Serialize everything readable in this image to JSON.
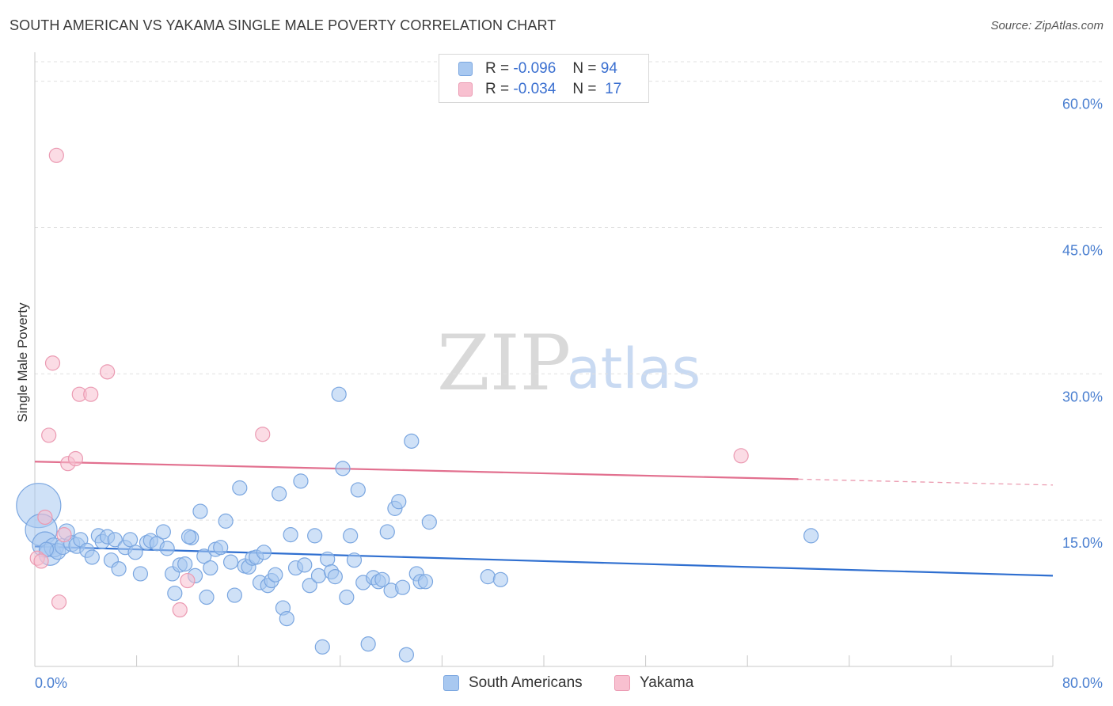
{
  "header": {
    "title": "SOUTH AMERICAN VS YAKAMA SINGLE MALE POVERTY CORRELATION CHART",
    "source": "Source: ZipAtlas.com"
  },
  "watermark": {
    "part1": "ZIP",
    "part2": "atlas"
  },
  "legend": {
    "rows": [
      {
        "r_label": "R =",
        "r_value": "-0.096",
        "n_label": "N =",
        "n_value": "94",
        "color": "#a8c8f0",
        "border": "#7aa6e0"
      },
      {
        "r_label": "R =",
        "r_value": "-0.034",
        "n_label": "N =",
        "n_value": "17",
        "color": "#f8c0d0",
        "border": "#eb9ab2"
      }
    ]
  },
  "bottom_legend": [
    {
      "label": "South Americans",
      "color": "#a8c8f0",
      "border": "#7aa6e0"
    },
    {
      "label": "Yakama",
      "color": "#f8c0d0",
      "border": "#eb9ab2"
    }
  ],
  "chart_data": {
    "type": "scatter",
    "title": "SOUTH AMERICAN VS YAKAMA SINGLE MALE POVERTY CORRELATION CHART",
    "xlabel": "",
    "ylabel": "Single Male Poverty",
    "xlim": [
      0,
      80
    ],
    "ylim": [
      0,
      62
    ],
    "x_tick_labels": [
      "0.0%",
      "80.0%"
    ],
    "y_ticks": [
      15,
      30,
      45,
      60
    ],
    "y_tick_labels": [
      "15.0%",
      "30.0%",
      "45.0%",
      "60.0%"
    ],
    "grid": "horizontal dashed",
    "legend_position": "top-center",
    "series": [
      {
        "name": "South Americans",
        "color": "#7aa6e0",
        "fill": "#a8c8f0",
        "trend": {
          "x": [
            0,
            80
          ],
          "y": [
            12.3,
            9.3
          ],
          "style": "solid",
          "color": "#2f6fd0"
        },
        "points": [
          [
            0.3,
            16.5,
            28
          ],
          [
            0.5,
            14,
            20
          ],
          [
            0.8,
            12.5,
            16
          ],
          [
            1.2,
            11.5,
            14
          ],
          [
            1.5,
            12.2,
            12
          ],
          [
            1.8,
            11.8,
            10
          ],
          [
            2.2,
            12.3,
            10
          ],
          [
            2.5,
            13.8,
            10
          ],
          [
            2.9,
            12.6,
            10
          ],
          [
            3.3,
            12.4,
            10
          ],
          [
            3.6,
            13.0,
            9
          ],
          [
            4.1,
            11.9,
            9
          ],
          [
            4.5,
            11.2,
            9
          ],
          [
            5.0,
            13.4,
            9
          ],
          [
            5.3,
            12.8,
            9
          ],
          [
            5.7,
            13.3,
            9
          ],
          [
            6.0,
            10.9,
            9
          ],
          [
            6.6,
            10.0,
            9
          ],
          [
            6.3,
            13.0,
            9
          ],
          [
            7.1,
            12.2,
            9
          ],
          [
            7.5,
            13.0,
            9
          ],
          [
            7.9,
            11.7,
            9
          ],
          [
            8.3,
            9.5,
            9
          ],
          [
            8.8,
            12.7,
            9
          ],
          [
            9.1,
            12.9,
            9
          ],
          [
            9.6,
            12.6,
            9
          ],
          [
            10.1,
            13.8,
            9
          ],
          [
            10.4,
            12.1,
            9
          ],
          [
            10.8,
            9.5,
            9
          ],
          [
            11.0,
            7.5,
            9
          ],
          [
            11.4,
            10.4,
            9
          ],
          [
            11.8,
            10.5,
            9
          ],
          [
            12.3,
            13.2,
            9
          ],
          [
            12.1,
            13.3,
            9
          ],
          [
            12.6,
            9.3,
            9
          ],
          [
            13.0,
            15.9,
            9
          ],
          [
            13.3,
            11.3,
            9
          ],
          [
            13.5,
            7.1,
            9
          ],
          [
            13.8,
            10.1,
            9
          ],
          [
            14.2,
            12.0,
            9
          ],
          [
            14.6,
            12.2,
            9
          ],
          [
            15.0,
            14.9,
            9
          ],
          [
            15.4,
            10.7,
            9
          ],
          [
            15.7,
            7.3,
            9
          ],
          [
            16.1,
            18.3,
            9
          ],
          [
            16.5,
            10.3,
            9
          ],
          [
            16.8,
            10.2,
            9
          ],
          [
            17.1,
            11.1,
            9
          ],
          [
            17.4,
            11.2,
            9
          ],
          [
            17.7,
            8.6,
            9
          ],
          [
            18.0,
            11.7,
            9
          ],
          [
            18.3,
            8.3,
            9
          ],
          [
            18.6,
            8.8,
            9
          ],
          [
            18.9,
            9.4,
            9
          ],
          [
            19.2,
            17.7,
            9
          ],
          [
            19.5,
            6.0,
            9
          ],
          [
            19.8,
            4.9,
            9
          ],
          [
            20.1,
            13.5,
            9
          ],
          [
            20.5,
            10.1,
            9
          ],
          [
            20.9,
            19.0,
            9
          ],
          [
            21.2,
            10.4,
            9
          ],
          [
            21.6,
            8.3,
            9
          ],
          [
            22.0,
            13.4,
            9
          ],
          [
            22.3,
            9.3,
            9
          ],
          [
            22.6,
            2.0,
            9
          ],
          [
            23.0,
            11.0,
            9
          ],
          [
            23.3,
            9.7,
            9
          ],
          [
            23.6,
            9.2,
            9
          ],
          [
            23.9,
            27.9,
            9
          ],
          [
            24.2,
            20.3,
            9
          ],
          [
            24.5,
            7.1,
            9
          ],
          [
            24.8,
            13.4,
            9
          ],
          [
            25.1,
            10.9,
            9
          ],
          [
            25.4,
            18.1,
            9
          ],
          [
            25.8,
            8.6,
            9
          ],
          [
            26.2,
            2.3,
            9
          ],
          [
            26.6,
            9.1,
            9
          ],
          [
            27.0,
            8.7,
            9
          ],
          [
            27.3,
            8.9,
            9
          ],
          [
            27.7,
            13.8,
            9
          ],
          [
            28.0,
            7.8,
            9
          ],
          [
            28.3,
            16.2,
            9
          ],
          [
            28.6,
            16.9,
            9
          ],
          [
            28.9,
            8.1,
            9
          ],
          [
            29.2,
            1.2,
            9
          ],
          [
            29.6,
            23.1,
            9
          ],
          [
            30.0,
            9.5,
            9
          ],
          [
            30.3,
            8.7,
            9
          ],
          [
            30.7,
            8.7,
            9
          ],
          [
            31.0,
            14.8,
            9
          ],
          [
            35.6,
            9.2,
            9
          ],
          [
            36.6,
            8.9,
            9
          ],
          [
            61.0,
            13.4,
            9
          ],
          [
            0.9,
            12.0,
            9
          ]
        ]
      },
      {
        "name": "Yakama",
        "color": "#eb9ab2",
        "fill": "#f8c0d0",
        "trend": {
          "x": [
            0,
            60,
            80
          ],
          "y": [
            21.0,
            19.2,
            18.6
          ],
          "style": "solid-then-dashed",
          "color": "#e2708f"
        },
        "points": [
          [
            0.2,
            11.1,
            9
          ],
          [
            0.5,
            10.8,
            9
          ],
          [
            0.8,
            15.3,
            9
          ],
          [
            1.1,
            23.7,
            9
          ],
          [
            1.4,
            31.1,
            9
          ],
          [
            1.7,
            52.4,
            9
          ],
          [
            1.9,
            6.6,
            9
          ],
          [
            2.3,
            13.5,
            9
          ],
          [
            2.6,
            20.8,
            9
          ],
          [
            3.2,
            21.3,
            9
          ],
          [
            3.5,
            27.9,
            9
          ],
          [
            4.4,
            27.9,
            9
          ],
          [
            5.7,
            30.2,
            9
          ],
          [
            11.4,
            5.8,
            9
          ],
          [
            12.0,
            8.8,
            9
          ],
          [
            17.9,
            23.8,
            9
          ],
          [
            55.5,
            21.6,
            9
          ]
        ]
      }
    ]
  }
}
